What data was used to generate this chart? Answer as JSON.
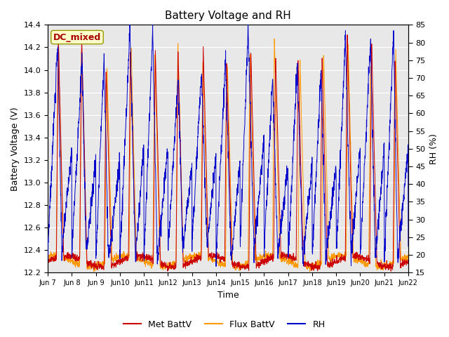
{
  "title": "Battery Voltage and RH",
  "xlabel": "Time",
  "ylabel_left": "Battery Voltage (V)",
  "ylabel_right": "RH (%)",
  "ylim_left": [
    12.2,
    14.4
  ],
  "ylim_right": [
    15,
    85
  ],
  "yticks_left": [
    12.2,
    12.4,
    12.6,
    12.8,
    13.0,
    13.2,
    13.4,
    13.6,
    13.8,
    14.0,
    14.2,
    14.4
  ],
  "yticks_right": [
    15,
    20,
    25,
    30,
    35,
    40,
    45,
    50,
    55,
    60,
    65,
    70,
    75,
    80,
    85
  ],
  "xtick_labels": [
    "Jun 7",
    "Jun 8",
    "Jun 9",
    "Jun 10",
    "Jun 11",
    "Jun 12",
    "Jun 13",
    "Jun 14",
    "Jun 15",
    "Jun 16",
    "Jun 17",
    "Jun 18",
    "Jun 19",
    "Jun 20",
    "Jun 21",
    "Jun 22"
  ],
  "color_met": "#cc0000",
  "color_flux": "#ff9900",
  "color_rh": "#0000cc",
  "legend_labels": [
    "Met BattV",
    "Flux BattV",
    "RH"
  ],
  "annotation_text": "DC_mixed",
  "annotation_color": "#aa0000",
  "annotation_bg": "#ffffcc",
  "annotation_border": "#999900",
  "background_color": "#e8e8e8",
  "n_days": 15,
  "pts_per_day": 144,
  "figsize": [
    6.4,
    4.8
  ],
  "dpi": 100
}
